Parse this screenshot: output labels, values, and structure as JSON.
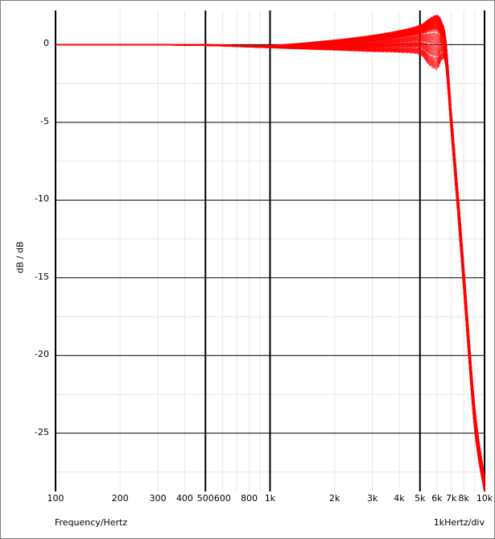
{
  "chart_data": {
    "type": "line",
    "title": "",
    "xlabel": "Frequency/Hertz",
    "ylabel": "dB / dB",
    "x_scale": "log",
    "xlim": [
      100,
      10000
    ],
    "ylim": [
      -28.75,
      2.2
    ],
    "grid": true,
    "x_ticks": [
      100,
      200,
      300,
      400,
      500,
      600,
      800,
      1000,
      2000,
      3000,
      4000,
      5000,
      6000,
      7000,
      8000,
      10000
    ],
    "x_tick_labels": [
      "100",
      "200",
      "300",
      "400",
      "500",
      "600",
      "800",
      "1k",
      "2k",
      "3k",
      "4k",
      "5k",
      "6k",
      "7k",
      "8k",
      "10k"
    ],
    "x_major_lines": [
      100,
      500,
      1000,
      5000,
      10000
    ],
    "x_minor_lines": [
      200,
      300,
      400,
      600,
      700,
      800,
      900,
      2000,
      3000,
      4000,
      6000,
      7000,
      8000,
      9000
    ],
    "y_ticks": [
      0,
      -5,
      -10,
      -15,
      -20,
      -25
    ],
    "y_tick_labels": [
      "0",
      "-5",
      "-10",
      "-15",
      "-20",
      "-25"
    ],
    "y_minor_step": 2.5,
    "scale_note": "1kHertz/div",
    "series_color": "#ff0000",
    "x": [
      100,
      200,
      500,
      1000,
      2000,
      3000,
      4000,
      5000,
      5500,
      6000,
      6300,
      6600,
      7000,
      7500,
      8000,
      9000,
      10000
    ],
    "series": [
      {
        "values": [
          0,
          0,
          0,
          -0.05,
          0.3,
          0.6,
          0.9,
          1.25,
          1.65,
          1.9,
          1.5,
          0.3,
          -4.3,
          -9.3,
          -14.2,
          -23.3,
          -27.8
        ]
      },
      {
        "values": [
          0,
          0,
          -0.02,
          -0.1,
          0.05,
          0.25,
          0.5,
          0.75,
          0.95,
          1.0,
          0.6,
          -0.3,
          -5,
          -10,
          -15,
          -24,
          -28.3
        ]
      },
      {
        "values": [
          0,
          0,
          -0.05,
          -0.2,
          -0.35,
          -0.45,
          -0.5,
          -0.65,
          -1.3,
          -1.6,
          -1.0,
          -1.4,
          -5.7,
          -10.8,
          -15.8,
          -24.8,
          -28.8
        ]
      }
    ]
  }
}
